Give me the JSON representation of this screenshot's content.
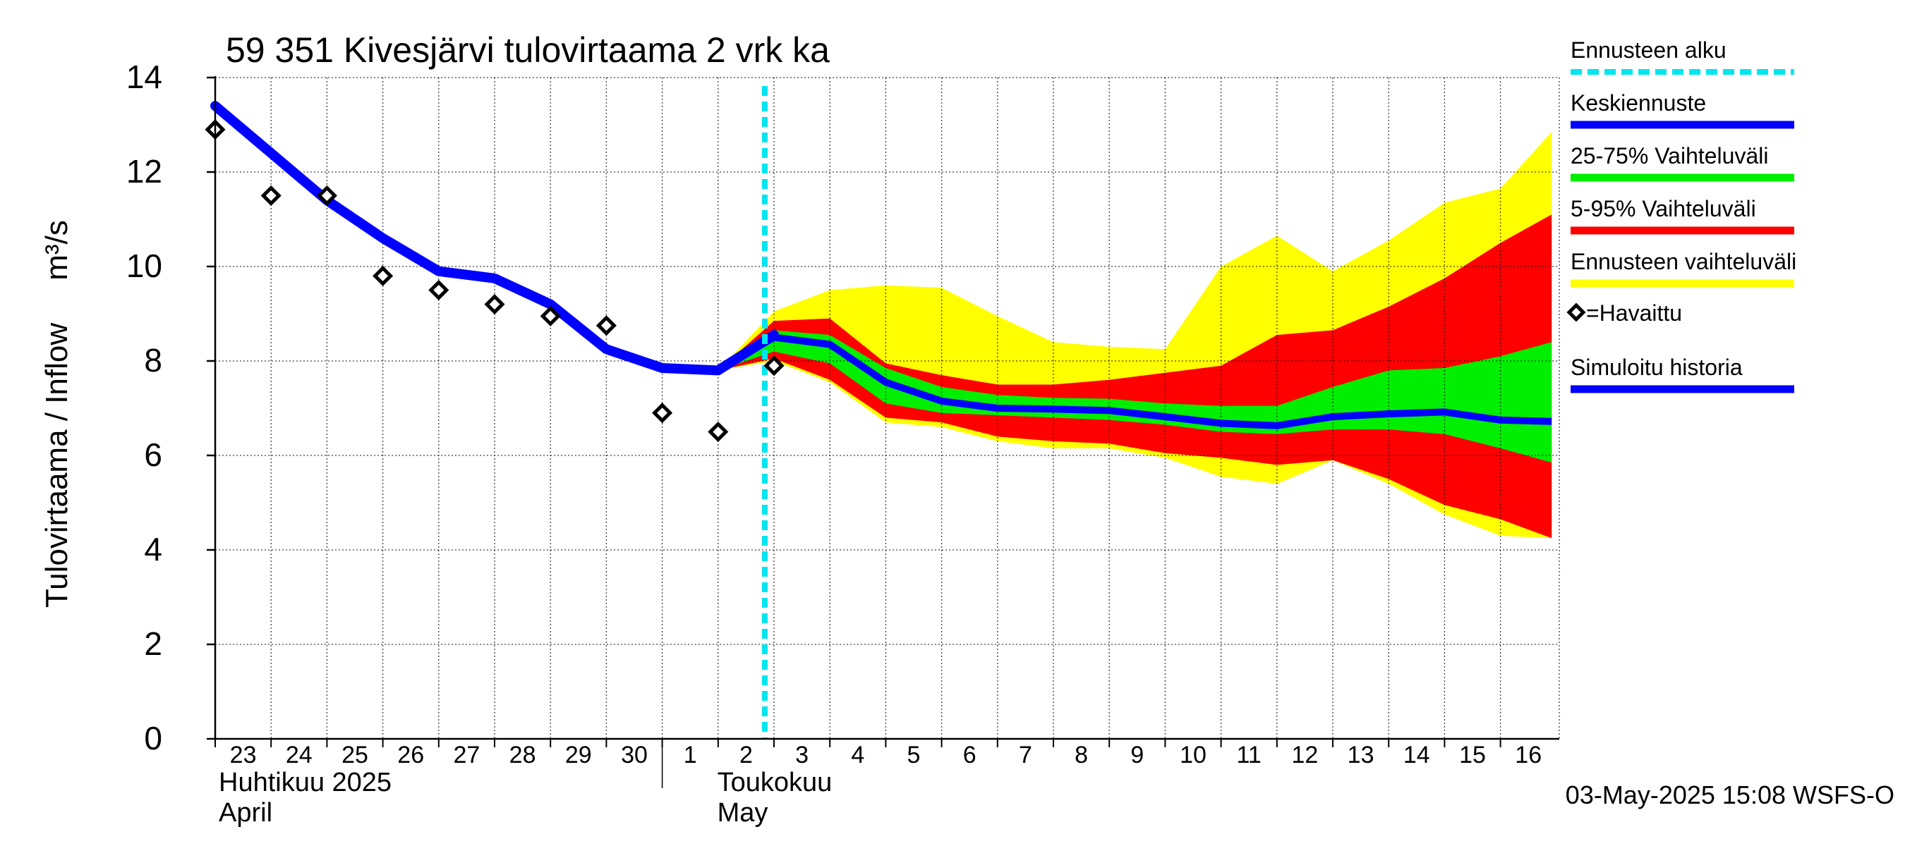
{
  "chart_data": {
    "type": "area",
    "title": "59 351 Kivesjärvi tulovirtaama 2 vrk ka",
    "ylabel": "Tulovirtaama / Inflow",
    "yunit": "m³/s",
    "ylim": [
      0,
      14
    ],
    "yticks": [
      0,
      2,
      4,
      6,
      8,
      10,
      12,
      14
    ],
    "x_start": "2025-04-23",
    "x_end": "2025-05-16",
    "x_tick_labels": [
      "23",
      "24",
      "25",
      "26",
      "27",
      "28",
      "29",
      "30",
      "1",
      "2",
      "3",
      "4",
      "5",
      "6",
      "7",
      "8",
      "9",
      "10",
      "11",
      "12",
      "13",
      "14",
      "15",
      "16"
    ],
    "month_labels": [
      {
        "fi": "Huhtikuu  2025",
        "en": "April"
      },
      {
        "fi": "Toukokuu",
        "en": "May"
      }
    ],
    "grid": true,
    "forecast_start": "2025-05-03",
    "legend_position": "right",
    "legend": [
      {
        "label": "Ennusteen alku",
        "color": "#00e5ee",
        "style": "dashed"
      },
      {
        "label": "Keskiennuste",
        "color": "#0000ff",
        "style": "line"
      },
      {
        "label": "25-75% Vaihteluväli",
        "color": "#00ee00",
        "style": "line"
      },
      {
        "label": "5-95% Vaihteluväli",
        "color": "#ff0000",
        "style": "line"
      },
      {
        "label": "Ennusteen vaihteluväli",
        "color": "#ffff00",
        "style": "line"
      },
      {
        "label": "=Havaittu",
        "color": "#000000",
        "style": "diamond"
      },
      {
        "label": "Simuloitu historia",
        "color": "#0000ff",
        "style": "line"
      }
    ],
    "simulated_history": {
      "x": [
        "2025-04-23",
        "2025-04-24",
        "2025-04-25",
        "2025-04-26",
        "2025-04-27",
        "2025-04-28",
        "2025-04-29",
        "2025-04-30",
        "2025-05-01",
        "2025-05-02",
        "2025-05-03"
      ],
      "y": [
        13.4,
        12.4,
        11.4,
        10.6,
        9.9,
        9.75,
        9.2,
        8.25,
        7.85,
        7.8,
        8.55
      ]
    },
    "observed": {
      "x": [
        "2025-04-23",
        "2025-04-24",
        "2025-04-25",
        "2025-04-26",
        "2025-04-27",
        "2025-04-28",
        "2025-04-29",
        "2025-04-30",
        "2025-05-01",
        "2025-05-02",
        "2025-05-03"
      ],
      "y": [
        12.9,
        11.5,
        11.5,
        9.8,
        9.5,
        9.2,
        8.95,
        8.75,
        6.9,
        6.5,
        7.9
      ]
    },
    "forecast": {
      "x": [
        "2025-05-02",
        "2025-05-03",
        "2025-05-04",
        "2025-05-05",
        "2025-05-06",
        "2025-05-07",
        "2025-05-08",
        "2025-05-09",
        "2025-05-10",
        "2025-05-11",
        "2025-05-12",
        "2025-05-13",
        "2025-05-14",
        "2025-05-15",
        "2025-05-16",
        "2025-05-16T22:00"
      ],
      "median": [
        7.8,
        8.5,
        8.35,
        7.55,
        7.15,
        7.0,
        6.98,
        6.95,
        6.82,
        6.68,
        6.63,
        6.82,
        6.88,
        6.92,
        6.75,
        6.72
      ],
      "p25": [
        7.8,
        8.2,
        7.95,
        7.1,
        6.9,
        6.85,
        6.8,
        6.75,
        6.65,
        6.5,
        6.45,
        6.55,
        6.55,
        6.45,
        6.15,
        5.85
      ],
      "p75": [
        7.8,
        8.65,
        8.55,
        7.85,
        7.45,
        7.28,
        7.22,
        7.2,
        7.1,
        7.05,
        7.05,
        7.45,
        7.8,
        7.85,
        8.1,
        8.4
      ],
      "p05": [
        7.8,
        8.05,
        7.6,
        6.8,
        6.7,
        6.4,
        6.3,
        6.25,
        6.05,
        5.95,
        5.8,
        5.9,
        5.5,
        4.95,
        4.65,
        4.25
      ],
      "p95": [
        7.8,
        8.85,
        8.9,
        7.95,
        7.7,
        7.5,
        7.5,
        7.6,
        7.75,
        7.9,
        8.55,
        8.65,
        9.15,
        9.75,
        10.5,
        11.1
      ],
      "min": [
        7.8,
        8.0,
        7.55,
        6.7,
        6.6,
        6.3,
        6.15,
        6.15,
        5.95,
        5.55,
        5.4,
        5.9,
        5.4,
        4.75,
        4.3,
        4.25
      ],
      "max": [
        7.8,
        9.05,
        9.5,
        9.6,
        9.55,
        8.95,
        8.4,
        8.3,
        8.25,
        10.0,
        10.65,
        9.9,
        10.55,
        11.35,
        11.65,
        12.85
      ]
    },
    "footer": "03-May-2025 15:08 WSFS-O"
  },
  "colors": {
    "median": "#0000ff",
    "history": "#0000ff",
    "band_25_75": "#00ee00",
    "band_5_95": "#ff0000",
    "band_range": "#ffff00",
    "forecast_start": "#00e5ee",
    "grid": "#000000"
  }
}
